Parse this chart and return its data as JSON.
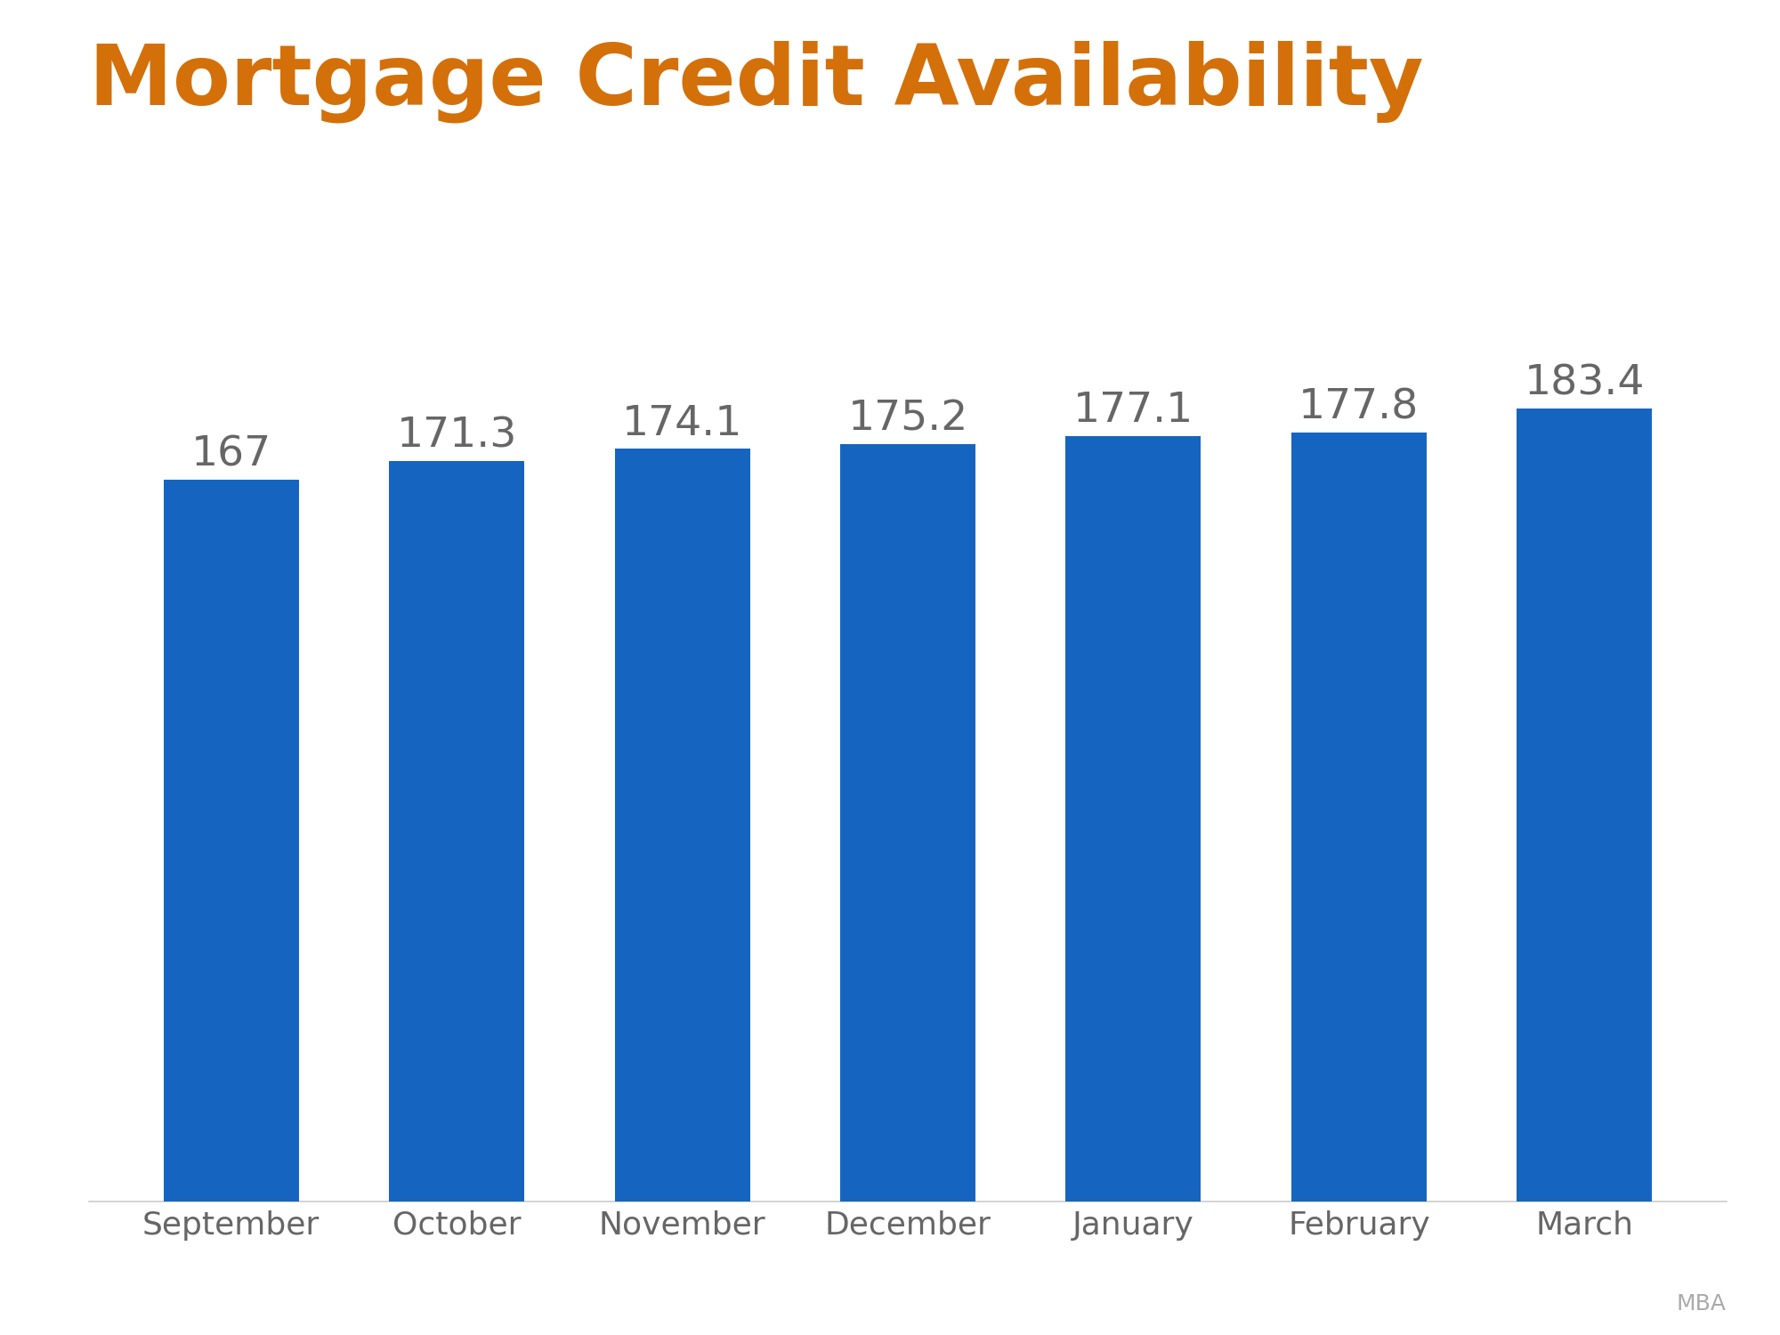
{
  "title": "Mortgage Credit Availability",
  "title_color": "#D4700A",
  "title_fontsize": 68,
  "categories": [
    "September",
    "October",
    "November",
    "December",
    "January",
    "February",
    "March"
  ],
  "values": [
    167.0,
    171.3,
    174.1,
    175.2,
    177.1,
    177.8,
    183.4
  ],
  "bar_color": "#1565C0",
  "label_color": "#666666",
  "label_fontsize": 34,
  "tick_fontsize": 26,
  "tick_color": "#666666",
  "background_color": "#ffffff",
  "source_text": "MBA",
  "source_fontsize": 18,
  "source_color": "#aaaaaa",
  "ylim_min": 0,
  "ylim_max": 210,
  "bar_width": 0.6
}
